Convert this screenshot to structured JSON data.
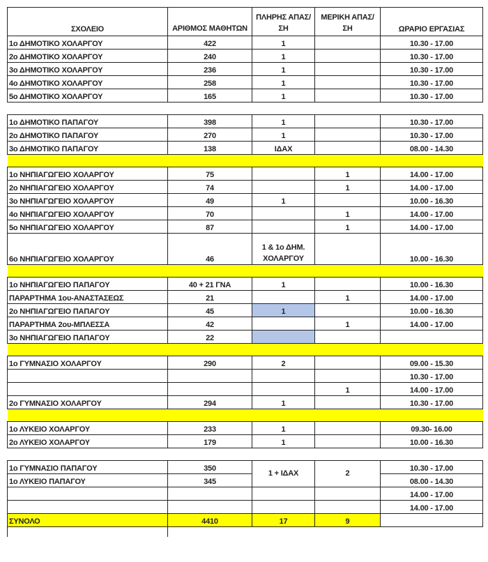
{
  "header": [
    "ΣΧΟΛΕΙΟ",
    "ΑΡΙΘΜΟΣ ΜΑΘΗΤΩΝ",
    "ΠΛΗΡΗΣ ΑΠΑΣ/ΣΗ",
    "ΜΕΡΙΚΗ ΑΠΑΣ/ΣΗ",
    "ΩΡΑΡΙΟ ΕΡΓΑΣΙΑΣ"
  ],
  "highlight_colors": {
    "separator": "#ffff00",
    "blue_cell": "#b4c6e7",
    "total": "#ffff00"
  },
  "rows": [
    {
      "type": "row",
      "cells": [
        "1ο ΔΗΜΟΤΙΚΟ ΧΟΛΑΡΓΟΥ",
        "422",
        "1",
        "",
        "10.30 - 17.00"
      ]
    },
    {
      "type": "row",
      "cells": [
        "2ο ΔΗΜΟΤΙΚΟ ΧΟΛΑΡΓΟΥ",
        "240",
        "1",
        "",
        "10.30 - 17.00"
      ]
    },
    {
      "type": "row",
      "cells": [
        "3ο ΔΗΜΟΤΙΚΟ ΧΟΛΑΡΓΟΥ",
        "236",
        "1",
        "",
        "10.30 - 17.00"
      ]
    },
    {
      "type": "row",
      "cells": [
        "4ο ΔΗΜΟΤΙΚΟ ΧΟΛΑΡΓΟΥ",
        "258",
        "1",
        "",
        "10.30 - 17.00"
      ]
    },
    {
      "type": "row",
      "cells": [
        "5ο ΔΗΜΟΤΙΚΟ ΧΟΛΑΡΓΟΥ",
        "165",
        "1",
        "",
        "10.30 - 17.00"
      ]
    },
    {
      "type": "gap"
    },
    {
      "type": "row",
      "cells": [
        "1ο ΔΗΜΟΤΙΚΟ ΠΑΠΑΓΟΥ",
        "398",
        "1",
        "",
        "10.30 - 17.00"
      ]
    },
    {
      "type": "row",
      "cells": [
        "2ο ΔΗΜΟΤΙΚΟ ΠΑΠΑΓΟΥ",
        "270",
        "1",
        "",
        "10.30 - 17.00"
      ]
    },
    {
      "type": "row",
      "cells": [
        "3ο ΔΗΜΟΤΙΚΟ ΠΑΠΑΓΟΥ",
        "138",
        "ΙΔΑΧ",
        "",
        "08.00 - 14.30"
      ]
    },
    {
      "type": "yellow"
    },
    {
      "type": "row",
      "cells": [
        "1ο ΝΗΠΙΑΓΩΓΕΙΟ ΧΟΛΑΡΓΟΥ",
        "75",
        "",
        "1",
        "14.00 - 17.00"
      ]
    },
    {
      "type": "row",
      "cells": [
        "2ο ΝΗΠΙΑΓΩΓΕΙΟ ΧΟΛΑΡΓΟΥ",
        "74",
        "",
        "1",
        "14.00 - 17.00"
      ]
    },
    {
      "type": "row",
      "cells": [
        "3ο ΝΗΠΙΑΓΩΓΕΙΟ ΧΟΛΑΡΓΟΥ",
        "49",
        "1",
        "",
        "10.00 - 16.30"
      ]
    },
    {
      "type": "row",
      "cells": [
        "4ο ΝΗΠΙΑΓΩΓΕΙΟ ΧΟΛΑΡΓΟΥ",
        "70",
        "",
        "1",
        "14.00 - 17.00"
      ]
    },
    {
      "type": "row",
      "cells": [
        "5ο ΝΗΠΙΑΓΩΓΕΙΟ ΧΟΛΑΡΓΟΥ",
        "87",
        "",
        "1",
        "14.00 - 17.00"
      ]
    },
    {
      "type": "row",
      "tall": true,
      "cells": [
        "6ο ΝΗΠΙΑΓΩΓΕΙΟ ΧΟΛΑΡΓΟΥ",
        "46",
        "1 & 1ο ΔΗΜ. ΧΟΛΑΡΓΟΥ",
        "",
        "10.00 - 16.30"
      ]
    },
    {
      "type": "yellow"
    },
    {
      "type": "row",
      "cells": [
        "1ο ΝΗΠΙΑΓΩΓΕΙΟ ΠΑΠΑΓΟΥ",
        "40 + 21 ΓΝΑ",
        "1",
        "",
        "10.00 - 16.30"
      ]
    },
    {
      "type": "row",
      "cells": [
        "ΠΑΡΑΡΤΗΜΑ 1ου-ΑΝΑΣΤΑΣΕΩΣ",
        "21",
        "",
        "1",
        "14.00 - 17.00"
      ]
    },
    {
      "type": "row",
      "blue_full": true,
      "cells": [
        "2ο ΝΗΠΙΑΓΩΓΕΙΟ ΠΑΠΑΓΟΥ",
        "45",
        "1",
        "",
        "10.00 - 16.30"
      ]
    },
    {
      "type": "row",
      "cells": [
        "ΠΑΡΑΡΤΗΜΑ 2ου-ΜΠΛΕΣΣΑ",
        "42",
        "",
        "1",
        "14.00 - 17.00"
      ]
    },
    {
      "type": "row",
      "blue_full": true,
      "cells": [
        "3ο ΝΗΠΙΑΓΩΓΕΙΟ ΠΑΠΑΓΟΥ",
        "22",
        "",
        "",
        ""
      ]
    },
    {
      "type": "yellow"
    },
    {
      "type": "row",
      "cells": [
        "1ο ΓΥΜΝΑΣΙΟ ΧΟΛΑΡΓΟΥ",
        "290",
        "2",
        "",
        "09.00 - 15.30"
      ]
    },
    {
      "type": "row",
      "cells": [
        "",
        "",
        "",
        "",
        "10.30 - 17.00"
      ]
    },
    {
      "type": "row",
      "cells": [
        "",
        "",
        "",
        "1",
        "14.00 - 17.00"
      ]
    },
    {
      "type": "row",
      "cells": [
        "2ο ΓΥΜΝΑΣΙΟ ΧΟΛΑΡΓΟΥ",
        "294",
        "1",
        "",
        "10.30 - 17.00"
      ]
    },
    {
      "type": "yellow"
    },
    {
      "type": "row",
      "cells": [
        "1ο ΛΥΚΕΙΟ ΧΟΛΑΡΓΟΥ",
        "233",
        "1",
        "",
        "09.30- 16.00"
      ]
    },
    {
      "type": "row",
      "cells": [
        "2ο ΛΥΚΕΙΟ ΧΟΛΑΡΓΟΥ",
        "179",
        "1",
        "",
        "10.00 - 16.30"
      ]
    },
    {
      "type": "gap"
    },
    {
      "type": "row",
      "merge_next": true,
      "cells": [
        "1ο ΓΥΜΝΑΣΙΟ ΠΑΠΑΓΟΥ",
        "350",
        "1 + ΙΔΑΧ",
        "2",
        "10.30 - 17.00"
      ]
    },
    {
      "type": "row",
      "merged": true,
      "cells": [
        "1ο ΛΥΚΕΙΟ ΠΑΠΑΓΟΥ",
        "345",
        "",
        "",
        "08.00 - 14.30"
      ]
    },
    {
      "type": "row",
      "cells": [
        "",
        "",
        "",
        "",
        "14.00 - 17.00"
      ]
    },
    {
      "type": "row",
      "cells": [
        "",
        "",
        "",
        "",
        "14.00 - 17.00"
      ]
    }
  ],
  "total": {
    "label": "ΣΥΝΟΛΟ",
    "students": "4410",
    "full": "17",
    "partial": "9",
    "hours": ""
  }
}
